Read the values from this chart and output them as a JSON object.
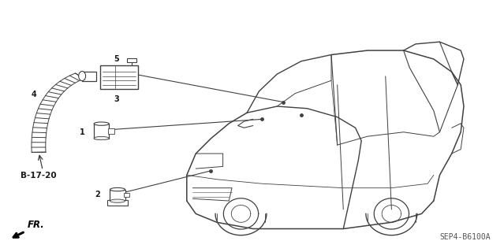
{
  "bg_color": "#ffffff",
  "diagram_title": "SEP4-B6100A",
  "fr_label": "FR.",
  "b1720_label": "B-17-20",
  "line_color": "#404040",
  "text_color": "#1a1a1a",
  "figsize": [
    6.39,
    3.2
  ],
  "dpi": 100,
  "car": {
    "ox": 0.385,
    "oy": 0.08,
    "sx": 0.58,
    "sy": 0.62
  }
}
